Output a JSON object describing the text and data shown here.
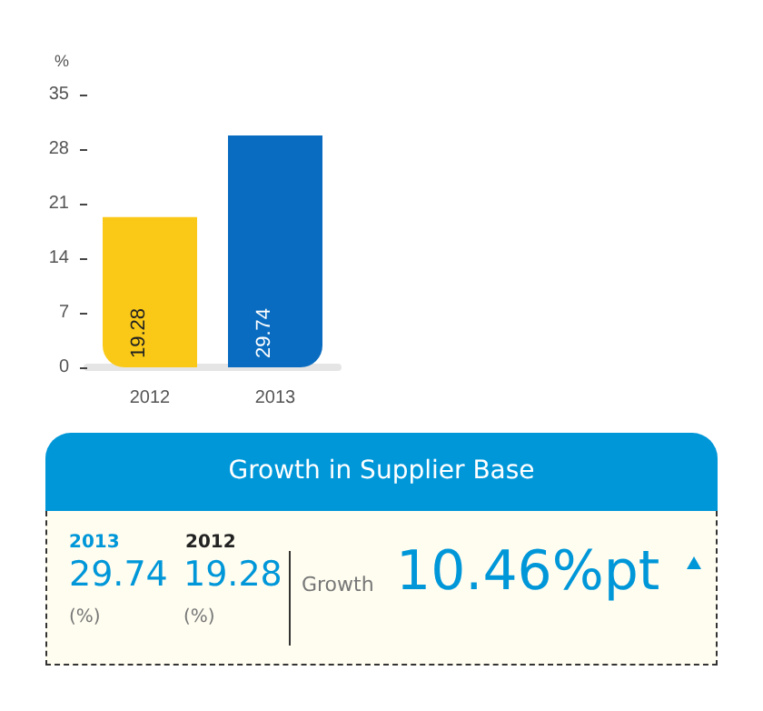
{
  "chart_data": {
    "type": "bar",
    "title": "Growth in Supplier Base",
    "ylabel": "%",
    "categories": [
      "2012",
      "2013"
    ],
    "values": [
      19.28,
      29.74
    ],
    "colors": [
      "#fac917",
      "#0a6cc0"
    ],
    "ylim": [
      0,
      35
    ],
    "yticks": [
      0,
      7,
      14,
      21,
      28,
      35
    ],
    "grid": false,
    "data_labels": true,
    "annotations": [
      "2013",
      "29.74",
      "(%)",
      "2012",
      "19.28",
      "(%)",
      "Growth",
      "10.46%pt"
    ]
  }
}
